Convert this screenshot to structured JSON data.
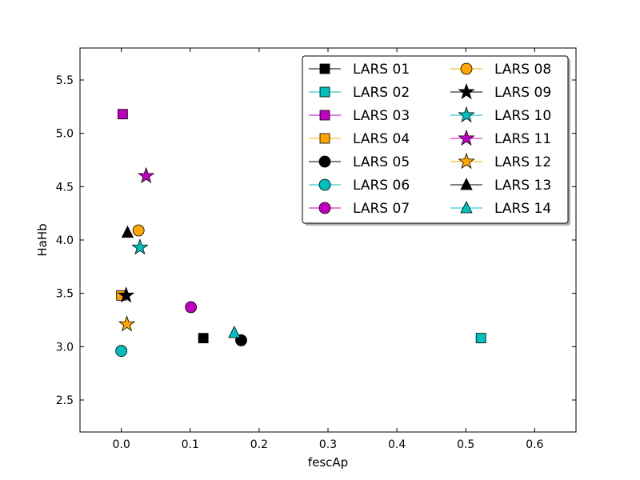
{
  "chart_data": {
    "type": "scatter",
    "title": "",
    "xlabel": "fescAp",
    "ylabel": "HaHb",
    "xlim": [
      -0.06,
      0.66
    ],
    "ylim": [
      2.2,
      5.8
    ],
    "xticks": [
      0.0,
      0.1,
      0.2,
      0.3,
      0.4,
      0.5,
      0.6
    ],
    "xtick_labels": [
      "0.0",
      "0.1",
      "0.2",
      "0.3",
      "0.4",
      "0.5",
      "0.6"
    ],
    "yticks": [
      2.5,
      3.0,
      3.5,
      4.0,
      4.5,
      5.0,
      5.5
    ],
    "ytick_labels": [
      "2.5",
      "3.0",
      "3.5",
      "4.0",
      "4.5",
      "5.0",
      "5.5"
    ],
    "grid": false,
    "legend_position": "top-right",
    "legend_columns": 2,
    "series": [
      {
        "name": "LARS 01",
        "marker": "square",
        "color": "#000000",
        "x": 0.119,
        "y": 3.08
      },
      {
        "name": "LARS 02",
        "marker": "square",
        "color": "#00bfbf",
        "x": 0.522,
        "y": 3.08
      },
      {
        "name": "LARS 03",
        "marker": "square",
        "color": "#bf00bf",
        "x": 0.002,
        "y": 5.18
      },
      {
        "name": "LARS 04",
        "marker": "square",
        "color": "#ffa500",
        "x": 0.0,
        "y": 3.48
      },
      {
        "name": "LARS 05",
        "marker": "circle",
        "color": "#000000",
        "x": 0.174,
        "y": 3.06
      },
      {
        "name": "LARS 06",
        "marker": "circle",
        "color": "#00bfbf",
        "x": 0.0,
        "y": 2.96
      },
      {
        "name": "LARS 07",
        "marker": "circle",
        "color": "#bf00bf",
        "x": 0.101,
        "y": 3.37
      },
      {
        "name": "LARS 08",
        "marker": "circle",
        "color": "#ffa500",
        "x": 0.025,
        "y": 4.09
      },
      {
        "name": "LARS 09",
        "marker": "star",
        "color": "#000000",
        "x": 0.007,
        "y": 3.48
      },
      {
        "name": "LARS 10",
        "marker": "star",
        "color": "#00bfbf",
        "x": 0.027,
        "y": 3.93
      },
      {
        "name": "LARS 11",
        "marker": "star",
        "color": "#bf00bf",
        "x": 0.036,
        "y": 4.6
      },
      {
        "name": "LARS 12",
        "marker": "star",
        "color": "#ffa500",
        "x": 0.008,
        "y": 3.21
      },
      {
        "name": "LARS 13",
        "marker": "triangle",
        "color": "#000000",
        "x": 0.009,
        "y": 4.07
      },
      {
        "name": "LARS 14",
        "marker": "triangle",
        "color": "#00bfbf",
        "x": 0.164,
        "y": 3.13
      }
    ]
  }
}
